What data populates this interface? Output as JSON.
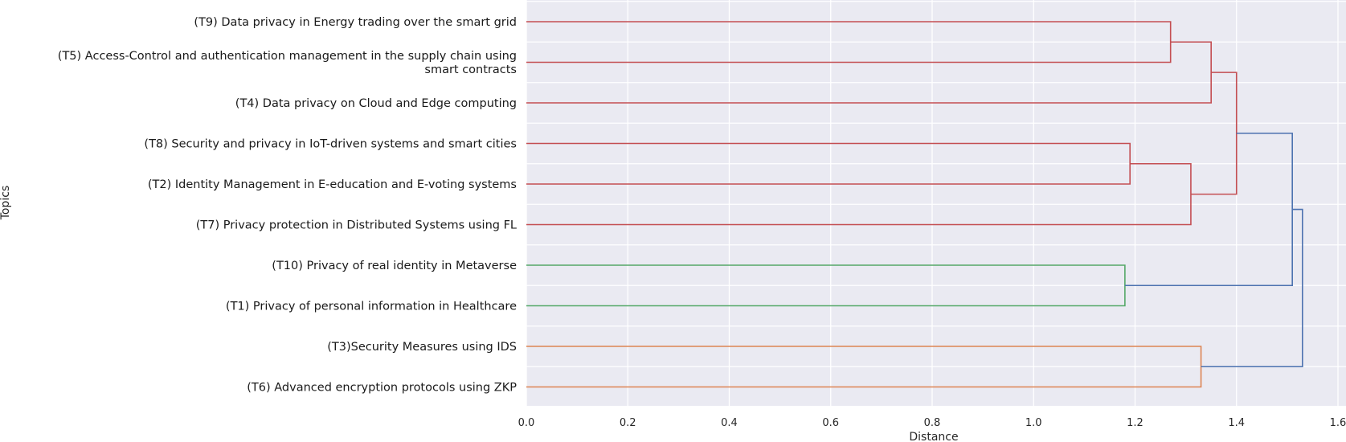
{
  "chart_data": {
    "type": "dendrogram",
    "orientation": "horizontal",
    "xlabel": "Distance",
    "ylabel": "Topics",
    "xlim": [
      0,
      1.6
    ],
    "xticks": [
      0.0,
      0.2,
      0.4,
      0.6,
      0.8,
      1.0,
      1.2,
      1.4,
      1.6
    ],
    "xtick_labels": [
      "0.0",
      "0.2",
      "0.4",
      "0.6",
      "0.8",
      "1.0",
      "1.2",
      "1.4",
      "1.6"
    ],
    "grid": true,
    "leaves": [
      {
        "id": "T9",
        "label": [
          "(T9) Data privacy in Energy trading over the smart grid"
        ]
      },
      {
        "id": "T5",
        "label": [
          "(T5) Access-Control and authentication management in the supply chain using",
          "smart contracts"
        ]
      },
      {
        "id": "T4",
        "label": [
          "(T4) Data privacy on Cloud and Edge computing"
        ]
      },
      {
        "id": "T8",
        "label": [
          "(T8) Security and privacy in IoT-driven systems and smart cities"
        ]
      },
      {
        "id": "T2",
        "label": [
          "(T2) Identity Management in E-education and E-voting systems"
        ]
      },
      {
        "id": "T7",
        "label": [
          "(T7) Privacy protection in Distributed Systems using FL"
        ]
      },
      {
        "id": "T10",
        "label": [
          "(T10) Privacy of real identity in Metaverse"
        ]
      },
      {
        "id": "T1",
        "label": [
          "(T1) Privacy of personal information in Healthcare"
        ]
      },
      {
        "id": "T3",
        "label": [
          "(T3)Security Measures using IDS"
        ]
      },
      {
        "id": "T6",
        "label": [
          "(T6) Advanced encryption protocols using ZKP"
        ]
      }
    ],
    "merges": [
      {
        "id": "A",
        "children": [
          "T9",
          "T5"
        ],
        "distance": 1.27,
        "color": "#c44e52"
      },
      {
        "id": "B",
        "children": [
          "A",
          "T4"
        ],
        "distance": 1.35,
        "color": "#c44e52"
      },
      {
        "id": "C",
        "children": [
          "T8",
          "T2"
        ],
        "distance": 1.19,
        "color": "#c44e52"
      },
      {
        "id": "D",
        "children": [
          "C",
          "T7"
        ],
        "distance": 1.31,
        "color": "#c44e52"
      },
      {
        "id": "E",
        "children": [
          "B",
          "D"
        ],
        "distance": 1.4,
        "color": "#c44e52"
      },
      {
        "id": "F",
        "children": [
          "T10",
          "T1"
        ],
        "distance": 1.18,
        "color": "#55a868"
      },
      {
        "id": "G",
        "children": [
          "E",
          "F"
        ],
        "distance": 1.51,
        "color": "#4c72b0"
      },
      {
        "id": "H",
        "children": [
          "T3",
          "T6"
        ],
        "distance": 1.33,
        "color": "#dd8452"
      },
      {
        "id": "I",
        "children": [
          "G",
          "H"
        ],
        "distance": 1.53,
        "color": "#4c72b0"
      }
    ]
  }
}
